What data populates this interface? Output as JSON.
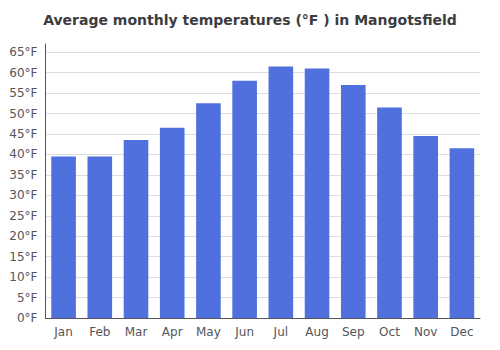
{
  "chart_data": {
    "type": "bar",
    "title": "Average monthly temperatures (°F ) in Mangotsfield",
    "categories": [
      "Jan",
      "Feb",
      "Mar",
      "Apr",
      "May",
      "Jun",
      "Jul",
      "Aug",
      "Sep",
      "Oct",
      "Nov",
      "Dec"
    ],
    "values": [
      39.5,
      39.5,
      43.5,
      46.5,
      52.5,
      58.0,
      61.5,
      61.0,
      57.0,
      51.5,
      44.5,
      41.5
    ],
    "ylim": [
      0,
      67
    ],
    "yticks": [
      {
        "value": 0,
        "label": "0°F"
      },
      {
        "value": 5,
        "label": "5°F"
      },
      {
        "value": 10,
        "label": "10°F"
      },
      {
        "value": 15,
        "label": "15°F"
      },
      {
        "value": 20,
        "label": "20°F"
      },
      {
        "value": 25,
        "label": "25°F"
      },
      {
        "value": 30,
        "label": "30°F"
      },
      {
        "value": 35,
        "label": "35°F"
      },
      {
        "value": 40,
        "label": "40°F"
      },
      {
        "value": 45,
        "label": "45°F"
      },
      {
        "value": 50,
        "label": "50°F"
      },
      {
        "value": 55,
        "label": "55°F"
      },
      {
        "value": 60,
        "label": "60°F"
      },
      {
        "value": 65,
        "label": "65°F"
      }
    ],
    "grid": true
  }
}
